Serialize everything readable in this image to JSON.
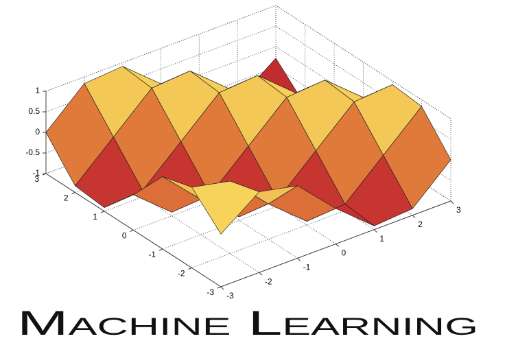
{
  "chart_data": {
    "type": "surface",
    "title": "Machine Learning",
    "x": [
      -3,
      -2,
      -1,
      0,
      1,
      2,
      3
    ],
    "y": [
      -3,
      -2,
      -1,
      0,
      1,
      2,
      3
    ],
    "z": [
      [
        0.28,
        0.96,
        0.76,
        -0.14,
        -0.91,
        -0.84,
        0
      ],
      [
        0.96,
        0.76,
        -0.14,
        -0.91,
        -0.84,
        0,
        0.84
      ],
      [
        0.76,
        -0.14,
        -0.91,
        -0.84,
        0,
        0.84,
        0.91
      ],
      [
        -0.14,
        -0.91,
        -0.84,
        0,
        0.84,
        0.91,
        0.14
      ],
      [
        -0.91,
        -0.84,
        0,
        0.84,
        0.91,
        0.14,
        -0.76
      ],
      [
        -0.84,
        0,
        0.84,
        0.91,
        0.14,
        -0.76,
        -0.96
      ],
      [
        0,
        0.84,
        0.91,
        0.14,
        -0.76,
        -0.96,
        -0.28
      ]
    ],
    "xlim": [
      -3,
      3
    ],
    "ylim": [
      -3,
      3
    ],
    "zlim": [
      -1,
      1
    ],
    "xticks": [
      -3,
      -2,
      -1,
      0,
      1,
      2,
      3
    ],
    "yticks": [
      -3,
      -2,
      -1,
      0,
      1,
      2,
      3
    ],
    "zticks": [
      -1,
      -0.5,
      0,
      0.5,
      1
    ],
    "grid": true,
    "colormap": [
      "#b8102a",
      "#e07a3a",
      "#fff266"
    ]
  }
}
